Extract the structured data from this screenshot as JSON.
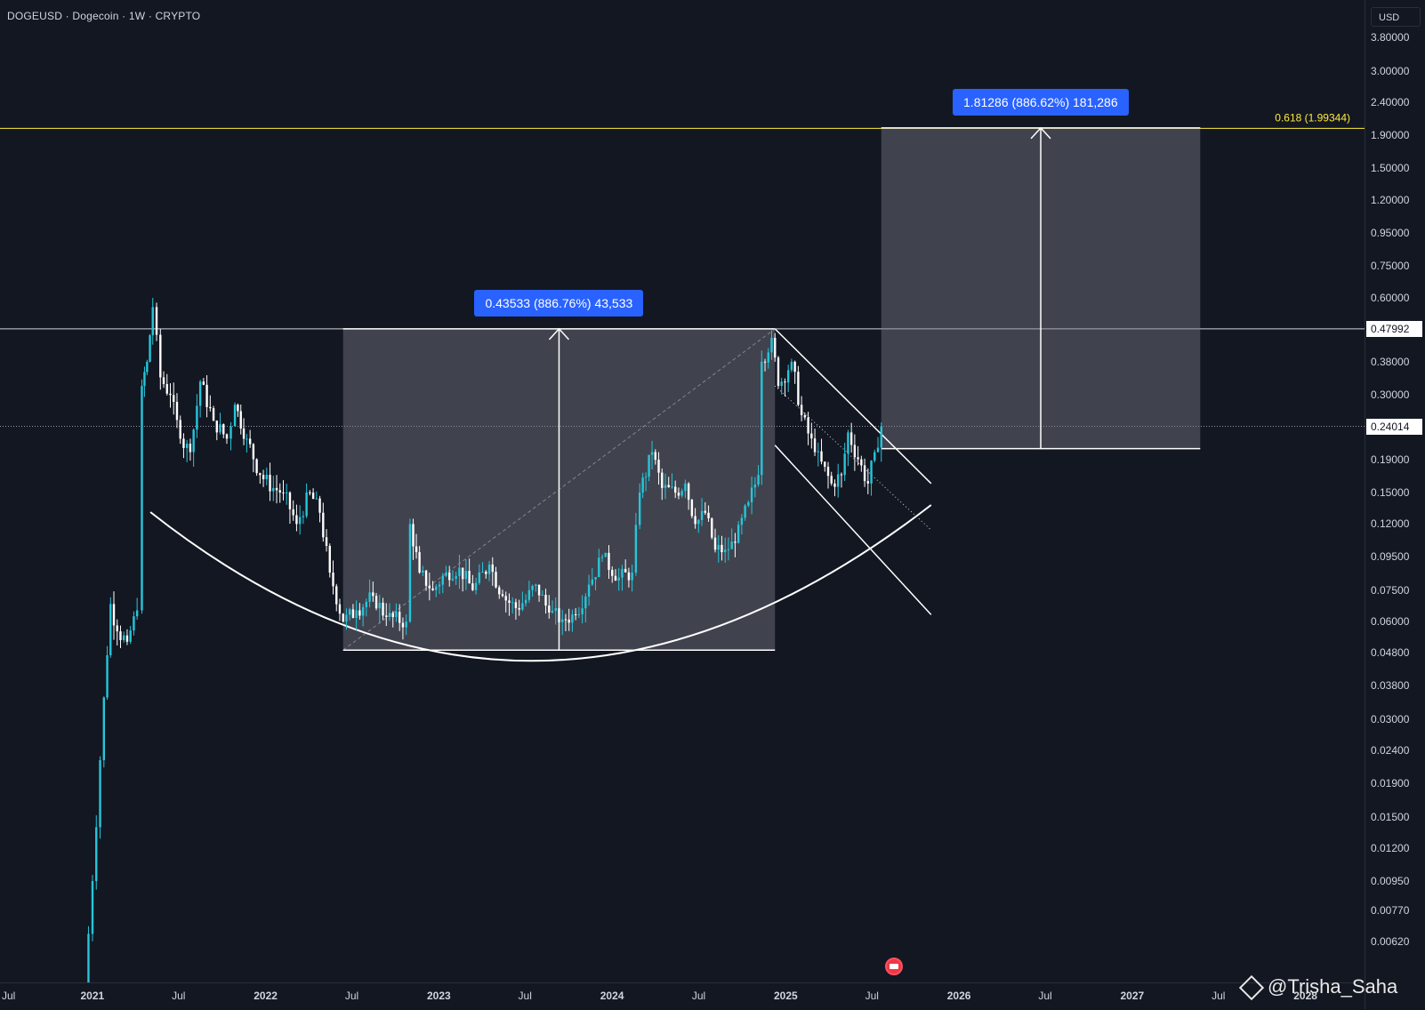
{
  "header": {
    "title": "DOGEUSD · Dogecoin · 1W · CRYPTO"
  },
  "price_scale": {
    "currency": "USD"
  },
  "watermark": {
    "text": "@Trisha_Saha",
    "icon": "binance-logo-icon"
  },
  "events": {
    "icon": "us-flag-economic-event-icon"
  },
  "colors": {
    "background": "#131722",
    "candle_up": "#26c6da",
    "candle_down": "#ffffff",
    "fib_line": "#ffeb3b",
    "measure_label": "#2962ff"
  },
  "chart_data": {
    "type": "candlestick",
    "title": "DOGEUSD · Dogecoin · 1W · CRYPTO",
    "scale": "log",
    "ylim": [
      0.0055,
      4.2
    ],
    "y_ticks": [
      "3.80000",
      "3.00000",
      "2.40000",
      "1.90000",
      "1.50000",
      "1.20000",
      "0.95000",
      "0.75000",
      "0.60000",
      "0.38000",
      "0.30000",
      "0.19000",
      "0.15000",
      "0.12000",
      "0.09500",
      "0.07500",
      "0.06000",
      "0.04800",
      "0.03800",
      "0.03000",
      "0.02400",
      "0.01900",
      "0.01500",
      "0.01200",
      "0.00950",
      "0.00770",
      "0.00620"
    ],
    "x_ticks": [
      {
        "label": "Jul",
        "date": "2020-07-01"
      },
      {
        "label": "2021",
        "date": "2021-01-01"
      },
      {
        "label": "Jul",
        "date": "2021-07-01"
      },
      {
        "label": "2022",
        "date": "2022-01-01"
      },
      {
        "label": "Jul",
        "date": "2022-07-01"
      },
      {
        "label": "2023",
        "date": "2023-01-01"
      },
      {
        "label": "Jul",
        "date": "2023-07-01"
      },
      {
        "label": "2024",
        "date": "2024-01-01"
      },
      {
        "label": "Jul",
        "date": "2024-07-01"
      },
      {
        "label": "2025",
        "date": "2025-01-01"
      },
      {
        "label": "Jul",
        "date": "2025-07-01"
      },
      {
        "label": "2026",
        "date": "2026-01-01"
      },
      {
        "label": "Jul",
        "date": "2026-07-01"
      },
      {
        "label": "2027",
        "date": "2027-01-01"
      },
      {
        "label": "Jul",
        "date": "2027-07-01"
      },
      {
        "label": "2028",
        "date": "2028-01-01"
      }
    ],
    "price_labels": [
      {
        "label": "0.47992",
        "value": 0.47992,
        "style": "horizontal-line"
      },
      {
        "label": "0.24014",
        "value": 0.24014,
        "style": "current-price"
      }
    ],
    "fib_level": {
      "label": "0.618 (1.99344)",
      "value": 1.99344
    },
    "series": [
      {
        "date": "2020-12-15",
        "value": 0.0045
      },
      {
        "date": "2021-01-01",
        "value": 0.0095
      },
      {
        "date": "2021-01-25",
        "value": 0.035
      },
      {
        "date": "2021-02-08",
        "value": 0.068
      },
      {
        "date": "2021-02-22",
        "value": 0.056
      },
      {
        "date": "2021-03-15",
        "value": 0.052
      },
      {
        "date": "2021-04-05",
        "value": 0.065
      },
      {
        "date": "2021-04-15",
        "value": 0.32
      },
      {
        "date": "2021-04-26",
        "value": 0.38
      },
      {
        "date": "2021-05-08",
        "value": 0.56
      },
      {
        "date": "2021-05-24",
        "value": 0.34
      },
      {
        "date": "2021-06-14",
        "value": 0.3
      },
      {
        "date": "2021-07-05",
        "value": 0.22
      },
      {
        "date": "2021-07-26",
        "value": 0.2
      },
      {
        "date": "2021-08-16",
        "value": 0.33
      },
      {
        "date": "2021-09-13",
        "value": 0.25
      },
      {
        "date": "2021-10-11",
        "value": 0.22
      },
      {
        "date": "2021-10-28",
        "value": 0.28
      },
      {
        "date": "2021-11-22",
        "value": 0.22
      },
      {
        "date": "2021-12-20",
        "value": 0.17
      },
      {
        "date": "2022-01-17",
        "value": 0.155
      },
      {
        "date": "2022-02-07",
        "value": 0.15
      },
      {
        "date": "2022-03-07",
        "value": 0.12
      },
      {
        "date": "2022-04-04",
        "value": 0.15
      },
      {
        "date": "2022-04-25",
        "value": 0.13
      },
      {
        "date": "2022-05-16",
        "value": 0.085
      },
      {
        "date": "2022-06-13",
        "value": 0.06
      },
      {
        "date": "2022-07-11",
        "value": 0.065
      },
      {
        "date": "2022-08-15",
        "value": 0.072
      },
      {
        "date": "2022-09-12",
        "value": 0.062
      },
      {
        "date": "2022-10-24",
        "value": 0.06
      },
      {
        "date": "2022-11-01",
        "value": 0.12
      },
      {
        "date": "2022-11-21",
        "value": 0.085
      },
      {
        "date": "2022-12-19",
        "value": 0.075
      },
      {
        "date": "2023-01-16",
        "value": 0.085
      },
      {
        "date": "2023-02-13",
        "value": 0.088
      },
      {
        "date": "2023-03-13",
        "value": 0.075
      },
      {
        "date": "2023-04-17",
        "value": 0.09
      },
      {
        "date": "2023-05-15",
        "value": 0.072
      },
      {
        "date": "2023-06-12",
        "value": 0.066
      },
      {
        "date": "2023-07-03",
        "value": 0.07
      },
      {
        "date": "2023-07-24",
        "value": 0.078
      },
      {
        "date": "2023-08-21",
        "value": 0.064
      },
      {
        "date": "2023-09-18",
        "value": 0.061
      },
      {
        "date": "2023-10-16",
        "value": 0.063
      },
      {
        "date": "2023-11-13",
        "value": 0.078
      },
      {
        "date": "2023-12-11",
        "value": 0.095
      },
      {
        "date": "2024-01-15",
        "value": 0.082
      },
      {
        "date": "2024-02-12",
        "value": 0.085
      },
      {
        "date": "2024-02-28",
        "value": 0.15
      },
      {
        "date": "2024-03-25",
        "value": 0.2
      },
      {
        "date": "2024-04-15",
        "value": 0.155
      },
      {
        "date": "2024-05-13",
        "value": 0.15
      },
      {
        "date": "2024-06-03",
        "value": 0.16
      },
      {
        "date": "2024-06-24",
        "value": 0.12
      },
      {
        "date": "2024-07-15",
        "value": 0.13
      },
      {
        "date": "2024-08-05",
        "value": 0.1
      },
      {
        "date": "2024-08-26",
        "value": 0.1
      },
      {
        "date": "2024-09-16",
        "value": 0.105
      },
      {
        "date": "2024-10-14",
        "value": 0.14
      },
      {
        "date": "2024-11-04",
        "value": 0.17
      },
      {
        "date": "2024-11-11",
        "value": 0.38
      },
      {
        "date": "2024-12-02",
        "value": 0.45
      },
      {
        "date": "2024-12-16",
        "value": 0.32
      },
      {
        "date": "2025-01-13",
        "value": 0.38
      },
      {
        "date": "2025-02-03",
        "value": 0.26
      },
      {
        "date": "2025-03-03",
        "value": 0.2
      },
      {
        "date": "2025-04-07",
        "value": 0.16
      },
      {
        "date": "2025-04-28",
        "value": 0.17
      },
      {
        "date": "2025-05-12",
        "value": 0.23
      },
      {
        "date": "2025-06-02",
        "value": 0.19
      },
      {
        "date": "2025-06-23",
        "value": 0.16
      },
      {
        "date": "2025-07-07",
        "value": 0.2
      },
      {
        "date": "2025-07-21",
        "value": 0.24
      }
    ],
    "annotations": [
      {
        "type": "price-range",
        "label": "0.43533 (886.76%) 43,533",
        "from_date": "2022-06-13",
        "to_date": "2024-12-09",
        "low": 0.049,
        "high": 0.48
      },
      {
        "type": "price-range",
        "label": "1.81286 (886.62%) 181,286",
        "from_date": "2025-07-21",
        "to_date": "2027-05-24",
        "low": 0.205,
        "high": 2.0
      },
      {
        "type": "curve",
        "label": "rounded-bottom",
        "from_date": "2021-05-03",
        "to_date": "2025-11-03",
        "low": 0.046
      },
      {
        "type": "channel",
        "label": "descending-channel",
        "from_date": "2024-12-09",
        "to_date": "2025-11-03",
        "upper": [
          0.48,
          0.16
        ],
        "lower": [
          0.21,
          0.063
        ]
      },
      {
        "type": "trend-line",
        "label": "dotted-diagonal",
        "from_date": "2024-12-09",
        "to_date": "2025-11-03",
        "values": [
          0.32,
          0.115
        ]
      },
      {
        "type": "trend-line",
        "label": "range-diagonal",
        "from_date": "2022-06-13",
        "to_date": "2024-12-09",
        "values": [
          0.049,
          0.48
        ]
      }
    ]
  }
}
